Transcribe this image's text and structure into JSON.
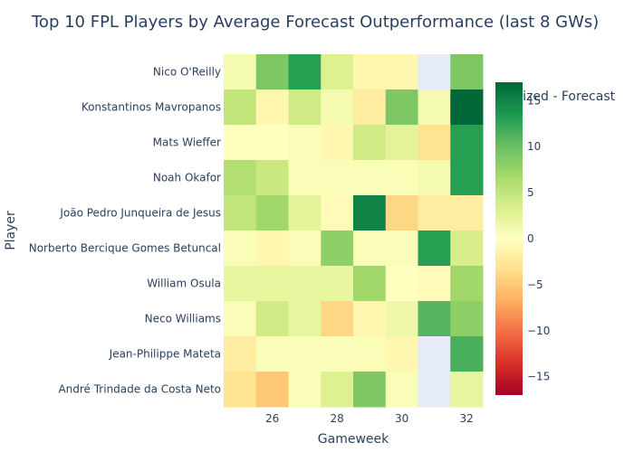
{
  "chart_data": {
    "type": "heatmap",
    "title": "Top 10 FPL Players by Average Forecast Outperformance (last 8 GWs)",
    "xlabel": "Gameweek",
    "ylabel": "Player",
    "x": [
      25,
      26,
      27,
      28,
      29,
      30,
      31,
      32
    ],
    "x_ticks": [
      26,
      28,
      30,
      32
    ],
    "players": [
      "Nico O'Reilly",
      "Konstantinos Mavropanos",
      "Mats Wieffer",
      "Noah Okafor",
      "João Pedro Junqueira de Jesus",
      "Norberto Bercique Gomes Betuncal",
      "William Osula",
      "Neco Williams",
      "Jean-Philippe Mateta",
      "André Trindade da Costa Neto"
    ],
    "values": [
      [
        1,
        9,
        13,
        3,
        -1,
        -1,
        null,
        9
      ],
      [
        5,
        -1,
        4,
        1,
        -2,
        9,
        1,
        17
      ],
      [
        0,
        0,
        0.5,
        -1,
        4,
        2.5,
        -3,
        13
      ],
      [
        6,
        4.5,
        0.5,
        0.5,
        0.5,
        0.5,
        1,
        13
      ],
      [
        5,
        7,
        2.5,
        -0.5,
        15,
        -4,
        -2,
        -2
      ],
      [
        0.5,
        -1,
        0.5,
        8,
        0.5,
        0.5,
        13,
        3.5
      ],
      [
        2,
        2,
        2,
        2,
        7,
        0,
        -0.5,
        7
      ],
      [
        0.5,
        4,
        2,
        -4,
        -1,
        1.5,
        11,
        8
      ],
      [
        -2,
        0.5,
        0.5,
        0.5,
        0.5,
        -1,
        null,
        11.5
      ],
      [
        -3,
        -5,
        0.5,
        3,
        9,
        0.5,
        null,
        2
      ]
    ],
    "colorbar": {
      "title": "Realized - Forecast",
      "range": [
        -17,
        17
      ],
      "ticks": [
        "15",
        "10",
        "5",
        "0",
        "−5",
        "−10",
        "−15"
      ],
      "tick_values": [
        15,
        10,
        5,
        0,
        -5,
        -10,
        -15
      ]
    },
    "colorscale": [
      "#a50026",
      "#d73027",
      "#f46d43",
      "#fdae61",
      "#fee08b",
      "#ffffbf",
      "#d9ef8b",
      "#a6d96a",
      "#66bd63",
      "#1a9850",
      "#006837"
    ],
    "missing_color": "#e5ecf6"
  }
}
